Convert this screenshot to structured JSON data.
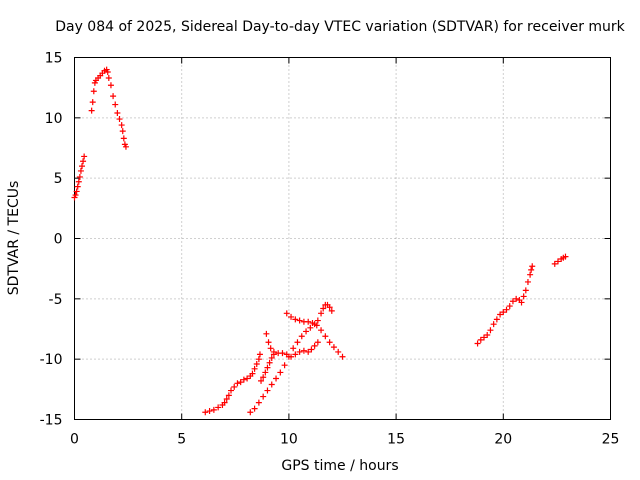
{
  "chart_data": {
    "type": "scatter",
    "title": "Day 084 of 2025, Sidereal Day-to-day VTEC variation (SDTVAR) for receiver murk",
    "xlabel": "GPS time / hours",
    "ylabel": "SDTVAR / TECUs",
    "xlim": [
      0,
      25
    ],
    "ylim": [
      -15,
      15
    ],
    "xticks": [
      0,
      5,
      10,
      15,
      20,
      25
    ],
    "yticks": [
      -15,
      -10,
      -5,
      0,
      5,
      10,
      15
    ],
    "xtick_labels": [
      "0",
      "5",
      "10",
      "15",
      "20",
      "25"
    ],
    "ytick_labels": [
      "-15",
      "-10",
      "-5",
      "0",
      "5",
      "10",
      "15"
    ],
    "grid": true,
    "marker": "+",
    "color": "#ff0000",
    "series": [
      {
        "points": [
          [
            0.0,
            3.4
          ],
          [
            0.05,
            3.6
          ],
          [
            0.1,
            3.9
          ],
          [
            0.15,
            4.3
          ],
          [
            0.2,
            4.7
          ],
          [
            0.25,
            5.1
          ],
          [
            0.3,
            5.6
          ],
          [
            0.35,
            6.0
          ],
          [
            0.4,
            6.4
          ],
          [
            0.45,
            6.8
          ],
          [
            0.8,
            10.6
          ],
          [
            0.85,
            11.3
          ],
          [
            0.9,
            12.2
          ],
          [
            0.95,
            12.9
          ],
          [
            1.0,
            13.1
          ],
          [
            1.1,
            13.3
          ],
          [
            1.2,
            13.5
          ],
          [
            1.3,
            13.7
          ],
          [
            1.4,
            13.9
          ],
          [
            1.5,
            14.0
          ],
          [
            1.55,
            13.8
          ],
          [
            1.6,
            13.3
          ],
          [
            1.7,
            12.7
          ],
          [
            1.8,
            11.8
          ],
          [
            1.9,
            11.1
          ],
          [
            2.0,
            10.4
          ],
          [
            2.1,
            9.9
          ],
          [
            2.2,
            9.4
          ],
          [
            2.25,
            8.9
          ],
          [
            2.3,
            8.3
          ],
          [
            2.35,
            7.8
          ],
          [
            2.4,
            7.6
          ]
        ]
      },
      {
        "points": [
          [
            6.1,
            -14.4
          ],
          [
            6.3,
            -14.3
          ],
          [
            6.5,
            -14.2
          ],
          [
            6.7,
            -14.0
          ],
          [
            6.9,
            -13.8
          ],
          [
            7.0,
            -13.6
          ],
          [
            7.1,
            -13.3
          ],
          [
            7.2,
            -13.0
          ],
          [
            7.3,
            -12.6
          ],
          [
            7.45,
            -12.3
          ],
          [
            7.6,
            -12.0
          ],
          [
            7.75,
            -11.9
          ],
          [
            7.9,
            -11.7
          ],
          [
            8.05,
            -11.6
          ],
          [
            8.2,
            -11.4
          ],
          [
            8.3,
            -11.2
          ],
          [
            8.4,
            -10.8
          ],
          [
            8.5,
            -10.4
          ],
          [
            8.6,
            -10.0
          ],
          [
            8.65,
            -9.6
          ],
          [
            8.7,
            -11.8
          ],
          [
            8.8,
            -11.5
          ],
          [
            8.9,
            -11.1
          ],
          [
            9.0,
            -10.7
          ],
          [
            9.1,
            -10.3
          ],
          [
            9.2,
            -9.9
          ],
          [
            9.3,
            -9.6
          ]
        ]
      },
      {
        "points": [
          [
            8.2,
            -14.4
          ],
          [
            8.4,
            -14.1
          ],
          [
            8.6,
            -13.6
          ],
          [
            8.8,
            -13.1
          ],
          [
            9.0,
            -12.6
          ],
          [
            9.2,
            -12.1
          ],
          [
            9.4,
            -11.6
          ],
          [
            9.6,
            -11.1
          ],
          [
            9.8,
            -10.5
          ],
          [
            10.0,
            -9.8
          ],
          [
            10.2,
            -9.1
          ],
          [
            10.4,
            -8.6
          ],
          [
            10.6,
            -8.1
          ],
          [
            10.8,
            -7.7
          ],
          [
            11.0,
            -7.4
          ],
          [
            11.2,
            -7.1
          ],
          [
            11.35,
            -6.8
          ],
          [
            11.5,
            -6.2
          ],
          [
            11.6,
            -5.8
          ],
          [
            11.7,
            -5.5
          ],
          [
            11.8,
            -5.5
          ],
          [
            11.9,
            -5.7
          ],
          [
            12.0,
            -6.0
          ]
        ]
      },
      {
        "points": [
          [
            8.95,
            -7.9
          ],
          [
            9.05,
            -8.6
          ],
          [
            9.15,
            -9.1
          ],
          [
            9.3,
            -9.4
          ],
          [
            9.5,
            -9.5
          ],
          [
            9.7,
            -9.5
          ],
          [
            9.9,
            -9.6
          ],
          [
            10.1,
            -9.8
          ],
          [
            10.3,
            -9.6
          ],
          [
            10.5,
            -9.4
          ],
          [
            10.7,
            -9.3
          ],
          [
            10.9,
            -9.4
          ],
          [
            11.05,
            -9.2
          ],
          [
            11.2,
            -8.9
          ],
          [
            11.35,
            -8.6
          ]
        ]
      },
      {
        "points": [
          [
            9.9,
            -6.2
          ],
          [
            10.1,
            -6.5
          ],
          [
            10.3,
            -6.7
          ],
          [
            10.5,
            -6.8
          ],
          [
            10.7,
            -6.9
          ],
          [
            10.9,
            -6.9
          ],
          [
            11.1,
            -7.0
          ],
          [
            11.3,
            -7.2
          ],
          [
            11.5,
            -7.6
          ],
          [
            11.7,
            -8.1
          ],
          [
            11.9,
            -8.6
          ],
          [
            12.1,
            -9.0
          ],
          [
            12.3,
            -9.4
          ],
          [
            12.5,
            -9.8
          ]
        ]
      },
      {
        "points": [
          [
            18.8,
            -8.7
          ],
          [
            18.95,
            -8.4
          ],
          [
            19.1,
            -8.2
          ],
          [
            19.25,
            -8.0
          ],
          [
            19.4,
            -7.6
          ],
          [
            19.55,
            -7.1
          ],
          [
            19.7,
            -6.7
          ],
          [
            19.85,
            -6.3
          ],
          [
            20.0,
            -6.1
          ],
          [
            20.15,
            -5.9
          ],
          [
            20.3,
            -5.6
          ],
          [
            20.45,
            -5.2
          ],
          [
            20.6,
            -5.0
          ],
          [
            20.75,
            -5.1
          ],
          [
            20.85,
            -5.3
          ],
          [
            20.95,
            -4.8
          ],
          [
            21.05,
            -4.3
          ],
          [
            21.15,
            -3.6
          ],
          [
            21.25,
            -3.0
          ],
          [
            21.3,
            -2.6
          ],
          [
            21.35,
            -2.3
          ]
        ]
      },
      {
        "points": [
          [
            22.4,
            -2.1
          ],
          [
            22.55,
            -1.9
          ],
          [
            22.7,
            -1.7
          ],
          [
            22.8,
            -1.6
          ],
          [
            22.9,
            -1.5
          ]
        ]
      }
    ]
  }
}
